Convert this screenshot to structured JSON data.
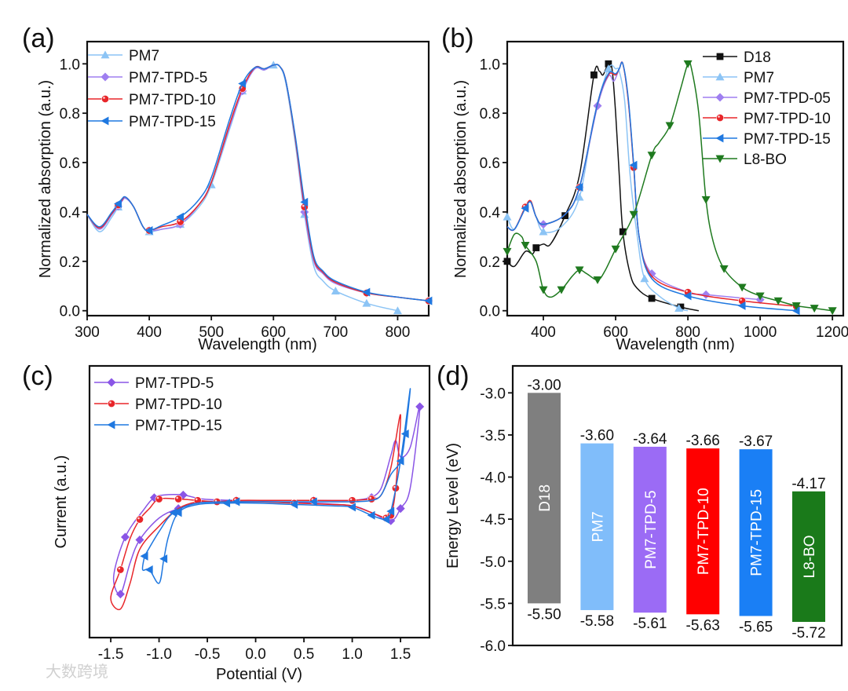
{
  "watermark": "大数跨境",
  "chart_data": [
    {
      "panel": "(a)",
      "type": "line",
      "xlabel": "Wavelength (nm)",
      "ylabel": "Normalized absorption (a.u.)",
      "xlim": [
        300,
        850
      ],
      "ylim": [
        -0.02,
        1.09
      ],
      "xticks": [
        300,
        400,
        500,
        600,
        700,
        800
      ],
      "yticks": [
        0.0,
        0.2,
        0.4,
        0.6,
        0.8,
        1.0
      ],
      "legend_position": "top-left",
      "series": [
        {
          "name": "PM7",
          "color": "#8cc4f5",
          "marker": "triangle-up",
          "markers_x": [
            350,
            400,
            450,
            500,
            550,
            600,
            650,
            700,
            750,
            800
          ],
          "x": [
            300,
            320,
            340,
            355,
            362,
            375,
            390,
            400,
            420,
            450,
            480,
            500,
            530,
            550,
            570,
            585,
            600,
            610,
            620,
            635,
            650,
            665,
            680,
            700,
            750,
            800
          ],
          "y": [
            0.39,
            0.32,
            0.38,
            0.44,
            0.455,
            0.42,
            0.34,
            0.32,
            0.33,
            0.35,
            0.42,
            0.51,
            0.74,
            0.89,
            0.98,
            0.975,
            0.995,
            0.99,
            0.92,
            0.68,
            0.39,
            0.18,
            0.12,
            0.08,
            0.03,
            0.0
          ]
        },
        {
          "name": "PM7-TPD-5",
          "color": "#9f7ff0",
          "marker": "diamond",
          "markers_x": [
            350,
            400,
            450,
            550,
            650,
            750,
            850
          ],
          "x": [
            300,
            320,
            340,
            355,
            362,
            375,
            390,
            400,
            420,
            450,
            480,
            500,
            530,
            550,
            570,
            585,
            600,
            610,
            620,
            635,
            650,
            665,
            680,
            700,
            750,
            800,
            850
          ],
          "y": [
            0.39,
            0.33,
            0.39,
            0.44,
            0.455,
            0.42,
            0.34,
            0.325,
            0.33,
            0.35,
            0.43,
            0.52,
            0.75,
            0.89,
            0.98,
            0.975,
            0.995,
            0.99,
            0.93,
            0.7,
            0.4,
            0.2,
            0.15,
            0.11,
            0.072,
            0.055,
            0.04
          ]
        },
        {
          "name": "PM7-TPD-10",
          "color": "#e8262a",
          "marker": "circle",
          "markers_x": [
            350,
            400,
            450,
            550,
            650,
            750,
            850
          ],
          "x": [
            300,
            320,
            340,
            355,
            362,
            375,
            390,
            400,
            420,
            450,
            480,
            500,
            530,
            550,
            570,
            585,
            600,
            610,
            620,
            635,
            650,
            665,
            680,
            700,
            750,
            800,
            850
          ],
          "y": [
            0.39,
            0.335,
            0.395,
            0.445,
            0.46,
            0.42,
            0.34,
            0.325,
            0.34,
            0.36,
            0.43,
            0.52,
            0.76,
            0.9,
            0.985,
            0.98,
            0.995,
            0.99,
            0.93,
            0.7,
            0.42,
            0.21,
            0.155,
            0.115,
            0.072,
            0.055,
            0.04
          ]
        },
        {
          "name": "PM7-TPD-15",
          "color": "#1f78e0",
          "marker": "triangle-left",
          "markers_x": [
            350,
            400,
            450,
            550,
            650,
            750,
            850
          ],
          "x": [
            300,
            320,
            340,
            355,
            362,
            375,
            390,
            400,
            420,
            450,
            480,
            500,
            530,
            550,
            570,
            585,
            600,
            610,
            620,
            635,
            650,
            665,
            680,
            700,
            750,
            800,
            850
          ],
          "y": [
            0.39,
            0.34,
            0.4,
            0.45,
            0.46,
            0.42,
            0.34,
            0.325,
            0.345,
            0.38,
            0.45,
            0.54,
            0.78,
            0.92,
            0.985,
            0.98,
            0.995,
            0.99,
            0.93,
            0.71,
            0.44,
            0.22,
            0.16,
            0.12,
            0.075,
            0.055,
            0.04
          ]
        }
      ]
    },
    {
      "panel": "(b)",
      "type": "line",
      "xlabel": "Wavelength (nm)",
      "ylabel": "Normalized absorption (a.u.)",
      "xlim": [
        300,
        1230
      ],
      "ylim": [
        -0.02,
        1.09
      ],
      "xticks": [
        400,
        600,
        800,
        1000,
        1200
      ],
      "yticks": [
        0.0,
        0.2,
        0.4,
        0.6,
        0.8,
        1.0
      ],
      "legend_position": "top-right",
      "series": [
        {
          "name": "D18",
          "color": "#111111",
          "marker": "square",
          "markers_x": [
            300,
            380,
            460,
            540,
            580,
            620,
            700,
            780
          ],
          "x": [
            300,
            320,
            350,
            370,
            380,
            400,
            420,
            460,
            500,
            540,
            555,
            565,
            580,
            590,
            600,
            610,
            620,
            640,
            660,
            700,
            780,
            830
          ],
          "y": [
            0.2,
            0.18,
            0.24,
            0.23,
            0.255,
            0.27,
            0.27,
            0.385,
            0.55,
            0.955,
            0.97,
            0.955,
            1.0,
            0.98,
            0.8,
            0.55,
            0.32,
            0.15,
            0.09,
            0.05,
            0.015,
            0.0
          ]
        },
        {
          "name": "PM7",
          "color": "#8cc4f5",
          "marker": "triangle-up",
          "markers_x": [
            300,
            400,
            500,
            580,
            680,
            775
          ],
          "x": [
            300,
            320,
            350,
            365,
            380,
            400,
            450,
            500,
            540,
            580,
            600,
            610,
            625,
            640,
            660,
            680,
            720,
            775,
            800
          ],
          "y": [
            0.38,
            0.33,
            0.42,
            0.44,
            0.38,
            0.32,
            0.34,
            0.46,
            0.78,
            0.98,
            0.98,
            0.97,
            0.85,
            0.55,
            0.3,
            0.13,
            0.06,
            0.01,
            0.0
          ]
        },
        {
          "name": "PM7-TPD-05",
          "color": "#9f7ff0",
          "marker": "diamond",
          "markers_x": [
            400,
            500,
            550,
            700,
            850,
            1000
          ],
          "x": [
            300,
            320,
            355,
            365,
            380,
            400,
            460,
            500,
            550,
            580,
            595,
            610,
            620,
            635,
            650,
            665,
            700,
            800,
            850,
            1000
          ],
          "y": [
            0.34,
            0.33,
            0.43,
            0.44,
            0.38,
            0.35,
            0.39,
            0.5,
            0.83,
            0.95,
            0.93,
            0.98,
            1.0,
            0.85,
            0.59,
            0.3,
            0.15,
            0.075,
            0.065,
            0.045
          ]
        },
        {
          "name": "PM7-TPD-10",
          "color": "#e8262a",
          "marker": "circle",
          "markers_x": [
            350,
            500,
            650,
            800,
            950,
            1100
          ],
          "x": [
            300,
            320,
            350,
            365,
            380,
            400,
            460,
            500,
            550,
            580,
            600,
            610,
            620,
            635,
            650,
            665,
            700,
            800,
            950,
            1100
          ],
          "y": [
            0.34,
            0.33,
            0.42,
            0.445,
            0.38,
            0.35,
            0.39,
            0.5,
            0.84,
            0.955,
            0.955,
            0.98,
            1.0,
            0.85,
            0.58,
            0.3,
            0.14,
            0.075,
            0.04,
            0.018
          ]
        },
        {
          "name": "PM7-TPD-15",
          "color": "#1f78e0",
          "marker": "triangle-left",
          "markers_x": [
            350,
            500,
            650,
            800,
            950,
            1100
          ],
          "x": [
            300,
            320,
            350,
            365,
            380,
            400,
            460,
            500,
            550,
            580,
            600,
            610,
            620,
            635,
            650,
            665,
            700,
            800,
            950,
            1100
          ],
          "y": [
            0.34,
            0.33,
            0.415,
            0.44,
            0.38,
            0.35,
            0.39,
            0.5,
            0.84,
            0.96,
            0.96,
            0.98,
            1.0,
            0.86,
            0.59,
            0.3,
            0.13,
            0.06,
            0.02,
            0.0
          ]
        },
        {
          "name": "L8-BO",
          "color": "#1f7a1f",
          "marker": "triangle-down",
          "markers_x": [
            300,
            350,
            400,
            450,
            500,
            550,
            600,
            650,
            700,
            750,
            800,
            850,
            900,
            950,
            1000,
            1050,
            1100,
            1150,
            1200
          ],
          "x": [
            300,
            320,
            340,
            350,
            380,
            400,
            420,
            450,
            480,
            500,
            520,
            550,
            570,
            600,
            650,
            700,
            720,
            750,
            780,
            800,
            810,
            830,
            850,
            870,
            900,
            950,
            1000,
            1050,
            1100,
            1150,
            1200
          ],
          "y": [
            0.24,
            0.31,
            0.3,
            0.265,
            0.2,
            0.085,
            0.055,
            0.085,
            0.14,
            0.165,
            0.15,
            0.125,
            0.16,
            0.25,
            0.39,
            0.63,
            0.68,
            0.75,
            0.9,
            1.0,
            0.98,
            0.8,
            0.45,
            0.28,
            0.17,
            0.095,
            0.06,
            0.04,
            0.02,
            0.01,
            0.0
          ]
        }
      ]
    },
    {
      "panel": "(c)",
      "type": "line",
      "xlabel": "Potential (V)",
      "ylabel": "Current (a.u.)",
      "xlim": [
        -1.72,
        1.8
      ],
      "ylim": [
        -1,
        1
      ],
      "xticks": [
        -1.5,
        -1.0,
        -0.5,
        0.0,
        0.5,
        1.0,
        1.5
      ],
      "xtick_labels": [
        "-1.5",
        "-1.0",
        "-0.5",
        "0.0",
        "0.5",
        "1.0",
        "1.5"
      ],
      "legend_position": "top-left",
      "series": [
        {
          "name": "PM7-TPD-5",
          "color": "#8a55e6",
          "marker": "diamond",
          "x": [
            1.2,
            1.0,
            0.6,
            0.2,
            -0.2,
            -0.55,
            -0.75,
            -0.95,
            -1.05,
            -1.15,
            -1.35,
            -1.47,
            -1.4,
            -1.3,
            -1.2,
            -1.0,
            -0.8,
            -0.55,
            -0.2,
            0.2,
            0.6,
            1.0,
            1.2,
            1.4,
            1.5,
            1.6,
            1.7,
            1.6,
            1.5,
            1.45,
            1.4,
            1.3,
            1.2
          ],
          "y": [
            0.03,
            0.01,
            0.01,
            0.01,
            0.01,
            0.02,
            0.05,
            0.05,
            0.03,
            -0.05,
            -0.26,
            -0.55,
            -0.68,
            -0.45,
            -0.28,
            -0.12,
            -0.05,
            -0.0,
            -0.0,
            -0.0,
            -0.01,
            -0.03,
            -0.08,
            -0.14,
            -0.05,
            0.1,
            0.7,
            0.4,
            0.33,
            0.45,
            0.34,
            0.1,
            0.03
          ]
        },
        {
          "name": "PM7-TPD-10",
          "color": "#e8262a",
          "marker": "circle",
          "x": [
            1.2,
            1.0,
            0.6,
            0.2,
            -0.2,
            -0.4,
            -0.6,
            -0.8,
            -1.0,
            -1.1,
            -1.2,
            -1.3,
            -1.4,
            -1.5,
            -1.4,
            -1.3,
            -1.2,
            -1.0,
            -0.8,
            -0.6,
            -0.4,
            0.0,
            0.4,
            0.8,
            1.0,
            1.2,
            1.35,
            1.4,
            1.45,
            1.5,
            1.4,
            1.3,
            1.2
          ],
          "y": [
            0.02,
            0.01,
            0.01,
            0.01,
            0.01,
            0.0,
            0.01,
            0.02,
            0.02,
            -0.05,
            -0.13,
            -0.27,
            -0.5,
            -0.71,
            -0.79,
            -0.6,
            -0.35,
            -0.18,
            -0.05,
            -0.0,
            0.0,
            0.0,
            -0.01,
            -0.02,
            -0.03,
            -0.08,
            -0.12,
            -0.1,
            0.1,
            0.64,
            0.25,
            0.05,
            0.02
          ]
        },
        {
          "name": "PM7-TPD-15",
          "color": "#1f78e0",
          "marker": "triangle-left",
          "x": [
            -1.15,
            -1.17,
            -1.1,
            -1.0,
            -0.95,
            -0.9,
            -0.8,
            -0.6,
            -0.3,
            0.0,
            0.4,
            0.8,
            1.0,
            1.2,
            1.35,
            1.4,
            1.5,
            1.6,
            1.55,
            1.5,
            1.4,
            1.3,
            1.2,
            1.0,
            0.6,
            0.2,
            -0.2,
            -0.6,
            -0.85,
            -1.0,
            -1.15
          ],
          "y": [
            -0.4,
            -0.5,
            -0.5,
            -0.6,
            -0.42,
            -0.25,
            -0.08,
            -0.02,
            -0.01,
            -0.01,
            -0.02,
            -0.03,
            -0.04,
            -0.1,
            -0.13,
            -0.07,
            0.3,
            0.83,
            0.5,
            0.3,
            0.2,
            0.05,
            0.01,
            0.0,
            0.0,
            0.0,
            0.0,
            -0.01,
            -0.08,
            -0.22,
            -0.4
          ]
        }
      ]
    },
    {
      "panel": "(d)",
      "type": "bar",
      "ylabel": "Energy Level (eV)",
      "ylim": [
        -6.0,
        -2.68
      ],
      "yticks": [
        -6.0,
        -5.5,
        -5.0,
        -4.5,
        -4.0,
        -3.5,
        -3.0
      ],
      "ytick_labels": [
        "-6.0",
        "-5.5",
        "-5.0",
        "-4.5",
        "-4.0",
        "-3.5",
        "-3.0"
      ],
      "categories": [
        "D18",
        "PM7",
        "PM7-TPD-5",
        "PM7-TPD-10",
        "PM7-TPD-15",
        "L8-BO"
      ],
      "lumo": [
        -3.0,
        -3.6,
        -3.64,
        -3.66,
        -3.67,
        -4.17
      ],
      "homo": [
        -5.5,
        -5.58,
        -5.61,
        -5.63,
        -5.65,
        -5.72
      ],
      "lumo_labels": [
        "-3.00",
        "-3.60",
        "-3.64",
        "-3.66",
        "-3.67",
        "-4.17"
      ],
      "homo_labels": [
        "-5.50",
        "-5.58",
        "-5.61",
        "-5.63",
        "-5.65",
        "-5.72"
      ],
      "colors": [
        "#7f7f7f",
        "#80bdfa",
        "#9b6bf5",
        "#ff0000",
        "#1a7ff5",
        "#1a7a1a"
      ]
    }
  ]
}
